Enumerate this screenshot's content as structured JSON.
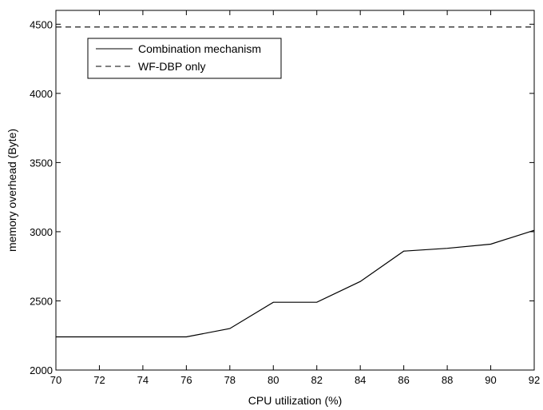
{
  "chart_data": {
    "type": "line",
    "title": "",
    "xlabel": "CPU utilization (%)",
    "ylabel": "memory overhead (Byte)",
    "xlim": [
      70,
      92
    ],
    "ylim": [
      2000,
      4600
    ],
    "x_ticks": [
      "70",
      "72",
      "74",
      "76",
      "78",
      "80",
      "82",
      "84",
      "86",
      "88",
      "90",
      "92"
    ],
    "y_ticks": [
      "2000",
      "2500",
      "3000",
      "3500",
      "4000",
      "4500"
    ],
    "grid": false,
    "legend_position": "top-left",
    "series": [
      {
        "name": "Combination mechanism",
        "style": "solid",
        "color": "#000000",
        "x": [
          70,
          72,
          74,
          76,
          78,
          80,
          82,
          84,
          86,
          88,
          90,
          92
        ],
        "y": [
          2240,
          2240,
          2240,
          2240,
          2300,
          2490,
          2490,
          2640,
          2860,
          2880,
          2910,
          3010
        ]
      },
      {
        "name": "WF-DBP only",
        "style": "dashed",
        "color": "#000000",
        "x": [
          70,
          72,
          74,
          76,
          78,
          80,
          82,
          84,
          86,
          88,
          90,
          92
        ],
        "y": [
          4480,
          4480,
          4480,
          4480,
          4480,
          4480,
          4480,
          4480,
          4480,
          4480,
          4480,
          4480
        ]
      }
    ]
  }
}
